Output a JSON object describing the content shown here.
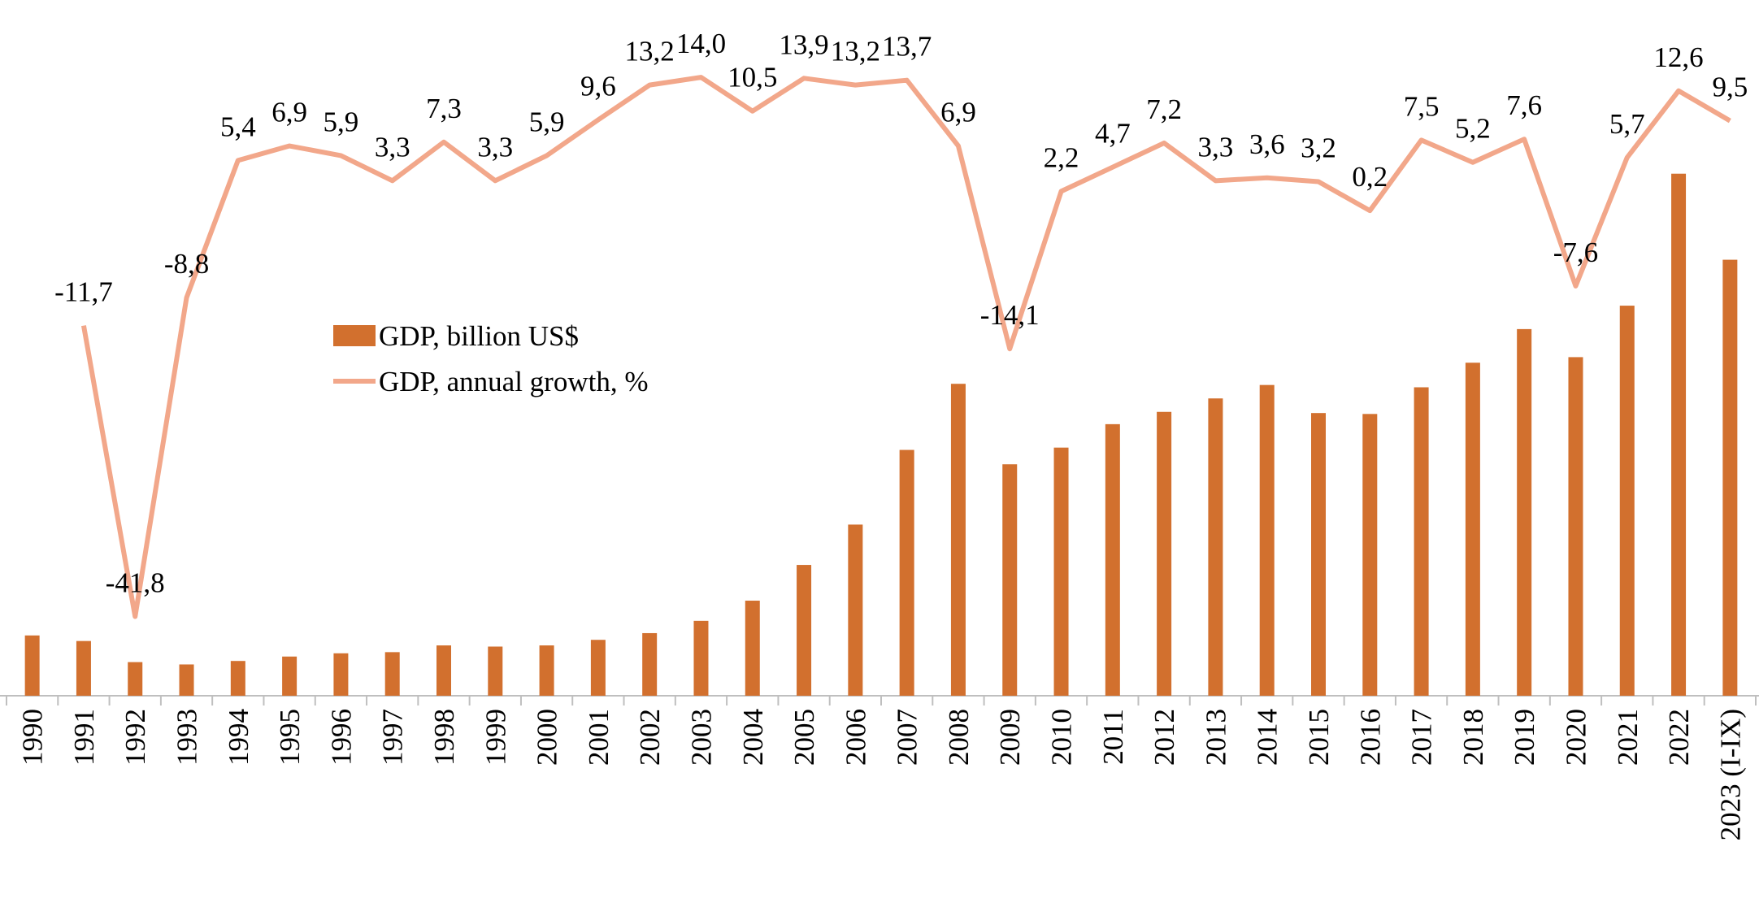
{
  "chart_data": {
    "type": "bar+line",
    "categories": [
      "1990",
      "1991",
      "1992",
      "1993",
      "1994",
      "1995",
      "1996",
      "1997",
      "1998",
      "1999",
      "2000",
      "2001",
      "2002",
      "2003",
      "2004",
      "2005",
      "2006",
      "2007",
      "2008",
      "2009",
      "2010",
      "2011",
      "2012",
      "2013",
      "2014",
      "2015",
      "2016",
      "2017",
      "2018",
      "2019",
      "2020",
      "2021",
      "2022",
      "2023 (I-IX)"
    ],
    "series": [
      {
        "name": "GDP, billion US$",
        "type": "bar",
        "color": "#d2702e",
        "values": [
          26.0,
          23.6,
          14.5,
          13.5,
          15.0,
          16.9,
          18.3,
          18.8,
          21.7,
          21.2,
          21.7,
          24.1,
          27.0,
          32.3,
          41.0,
          56.4,
          73.8,
          106.0,
          134.5,
          99.8,
          107.0,
          117.1,
          122.4,
          128.2,
          134.0,
          121.9,
          121.5,
          133.0,
          143.6,
          158.1,
          146.0,
          168.2,
          225.1,
          188.0
        ]
      },
      {
        "name": "GDP, annual growth, %",
        "type": "line",
        "axis": "y2",
        "color": "#f2a78a",
        "values": [
          null,
          -11.7,
          -41.8,
          -8.8,
          5.4,
          6.9,
          5.9,
          3.3,
          7.3,
          3.3,
          5.9,
          9.6,
          13.2,
          14.0,
          10.5,
          13.9,
          13.2,
          13.7,
          6.9,
          -14.1,
          2.2,
          4.7,
          7.2,
          3.3,
          3.6,
          3.2,
          0.2,
          7.5,
          5.2,
          7.6,
          -7.6,
          5.7,
          12.6,
          9.5
        ],
        "value_labels": [
          null,
          "-11,7",
          "-41,8",
          "-8,8",
          "5,4",
          "6,9",
          "5,9",
          "3,3",
          "7,3",
          "3,3",
          "5,9",
          "9,6",
          "13,2",
          "14,0",
          "10,5",
          "13,9",
          "13,2",
          "13,7",
          "6,9",
          "-14,1",
          "2,2",
          "4,7",
          "7,2",
          "3,3",
          "3,6",
          "3,2",
          "0,2",
          "7,5",
          "5,2",
          "7,6",
          "-7,6",
          "5,7",
          "12,6",
          "9,5"
        ]
      }
    ],
    "ylim": [
      0,
      300
    ],
    "y2lim": [
      -50,
      22
    ],
    "legend": "upper-left"
  }
}
